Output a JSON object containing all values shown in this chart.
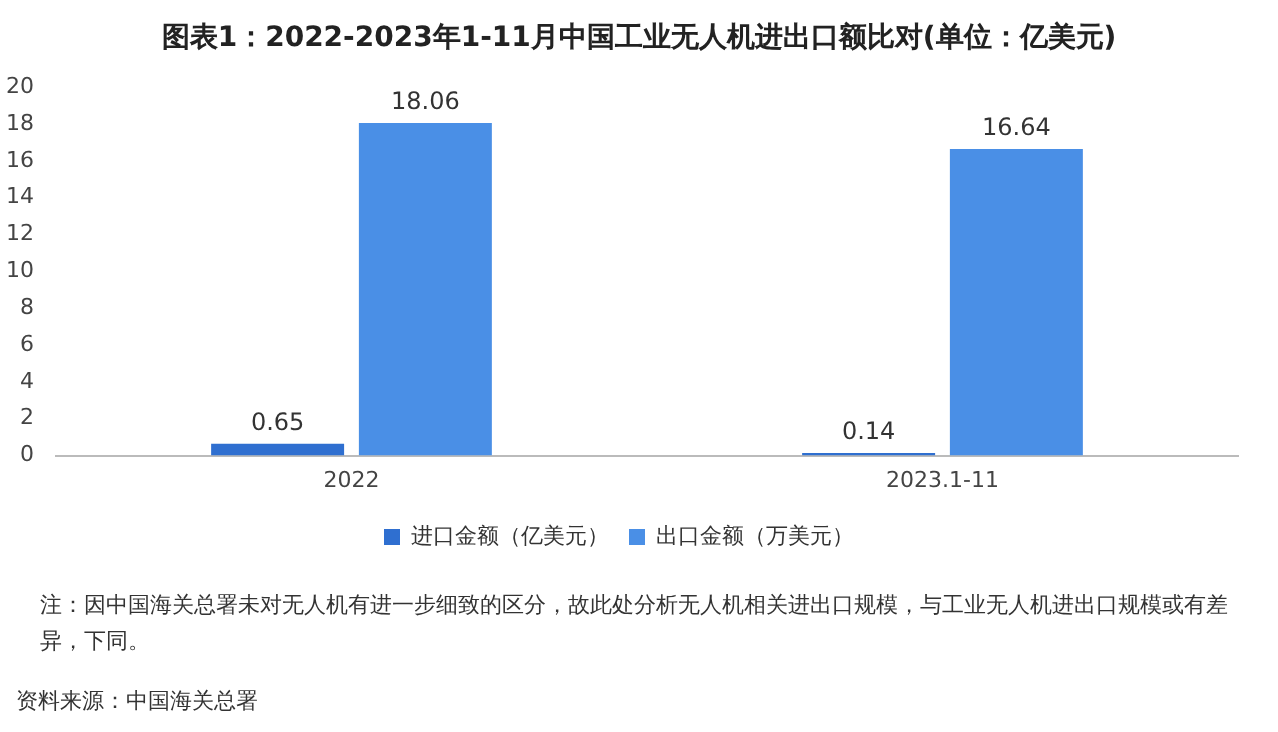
{
  "chart_data": {
    "type": "bar",
    "title": "图表1：2022-2023年1-11月中国工业无人机进出口额比对(单位：亿美元)",
    "categories": [
      "2022",
      "2023.1-11"
    ],
    "series": [
      {
        "name": "进口金额（亿美元）",
        "color": "#2f6fd0",
        "values": [
          0.65,
          0.14
        ]
      },
      {
        "name": "出口金额（万美元）",
        "color": "#4a8fe6",
        "values": [
          18.06,
          16.64
        ]
      }
    ],
    "ylim": [
      0,
      20
    ],
    "yticks": [
      0,
      2,
      4,
      6,
      8,
      10,
      12,
      14,
      16,
      18,
      20
    ],
    "grid": false,
    "legend": "bottom",
    "data_labels": true,
    "annotations": [
      "注：因中国海关总署未对无人机有进一步细致的区分，故此处分析无人机相关进出口规模，与工业无人机进出口规模或有差异，下同。",
      "资料来源：中国海关总署"
    ]
  }
}
